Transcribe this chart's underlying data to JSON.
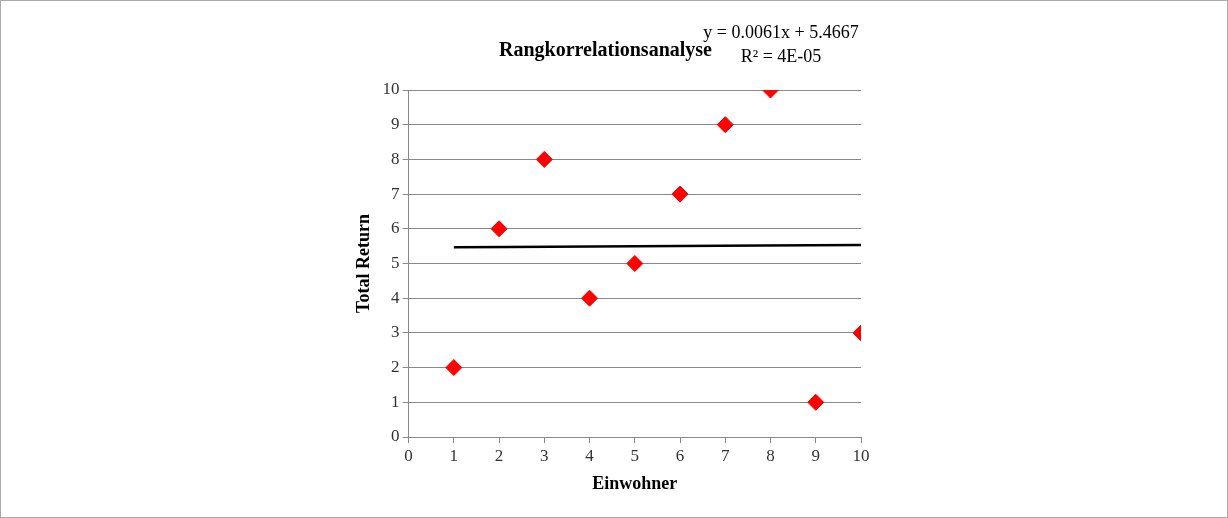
{
  "chart_data": {
    "type": "scatter",
    "title": "Rangkorrelationsanalyse",
    "xlabel": "Einwohner",
    "ylabel": "Total Return",
    "annotations": [
      "y = 0.0061x + 5.4667",
      "R² = 4E-05"
    ],
    "xlim": [
      0,
      10
    ],
    "xticks": [
      0,
      1,
      2,
      3,
      4,
      5,
      6,
      7,
      8,
      9,
      10
    ],
    "ylim": [
      0,
      10
    ],
    "yticks": [
      0,
      1,
      2,
      3,
      4,
      5,
      6,
      7,
      8,
      9,
      10
    ],
    "grid": "y",
    "legend": false,
    "marker": "diamond",
    "series": [
      {
        "type": "scatter",
        "color": "#ff0000",
        "x": [
          1,
          2,
          3,
          4,
          5,
          6,
          7,
          8,
          9,
          10
        ],
        "values": [
          2,
          6,
          8,
          4,
          5,
          7,
          9,
          10,
          1,
          3
        ]
      },
      {
        "type": "line",
        "color": "#000000",
        "x": [
          1,
          10
        ],
        "values": [
          5.47,
          5.53
        ],
        "marker": "none"
      }
    ]
  }
}
